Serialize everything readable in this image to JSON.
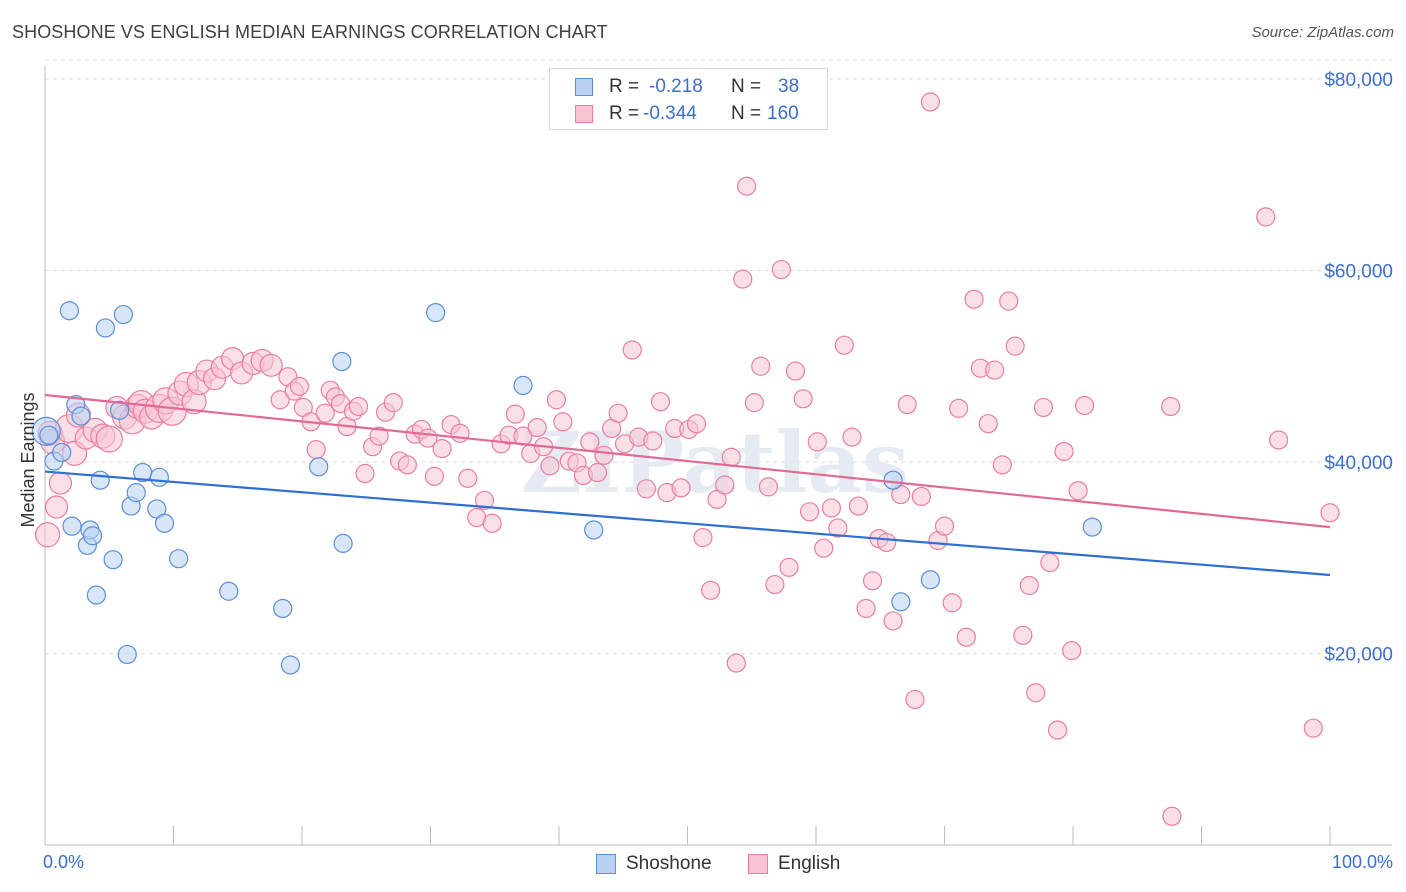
{
  "title": "SHOSHONE VS ENGLISH MEDIAN EARNINGS CORRELATION CHART",
  "source": "Source: ZipAtlas.com",
  "watermark": "ZIPatlas",
  "stats": [
    {
      "r_label": "R =",
      "r_value": "-0.218",
      "n_label": "N =",
      "n_value": "38"
    },
    {
      "r_label": "R =",
      "r_value": "-0.344",
      "n_label": "N =",
      "n_value": "160"
    }
  ],
  "x_min_label": "0.0%",
  "x_max_label": "100.0%",
  "colors": {
    "shoshone_fill": "#b8d1f3",
    "shoshone_stroke": "#5b8fd6",
    "shoshone_line": "#2f6fd1",
    "english_fill": "#f8c4d4",
    "english_stroke": "#e97fa0",
    "english_line": "#e06a93",
    "axis_text": "#3a6fd0",
    "grid": "#d9d9d9"
  },
  "chart_data": {
    "type": "scatter",
    "title": "SHOSHONE VS ENGLISH MEDIAN EARNINGS CORRELATION CHART",
    "xlabel": "",
    "ylabel": "Median Earnings",
    "xlim": [
      0,
      100
    ],
    "ylim": [
      0,
      82000
    ],
    "x_tick_labels": [
      "0.0%",
      "100.0%"
    ],
    "y_ticks": [
      20000,
      40000,
      60000,
      80000
    ],
    "y_tick_labels": [
      "$20,000",
      "$40,000",
      "$60,000",
      "$80,000"
    ],
    "grid": true,
    "legend_position": "bottom-center",
    "series": [
      {
        "name": "Shoshone",
        "trend": {
          "x": [
            0,
            100
          ],
          "y": [
            39000,
            28200
          ]
        },
        "points": [
          [
            0.1,
            43200,
            14
          ],
          [
            0.3,
            42800,
            9
          ],
          [
            0.7,
            40100,
            9
          ],
          [
            1.3,
            41000,
            9
          ],
          [
            1.9,
            55800,
            9
          ],
          [
            2.1,
            33300,
            9
          ],
          [
            2.4,
            46000,
            9
          ],
          [
            2.8,
            44800,
            9
          ],
          [
            3.3,
            31300,
            9
          ],
          [
            3.5,
            32900,
            9
          ],
          [
            3.7,
            32300,
            9
          ],
          [
            4.0,
            26100,
            9
          ],
          [
            4.3,
            38100,
            9
          ],
          [
            4.7,
            54000,
            9
          ],
          [
            5.3,
            29800,
            9
          ],
          [
            5.8,
            45400,
            9
          ],
          [
            6.1,
            55400,
            9
          ],
          [
            6.4,
            19900,
            9
          ],
          [
            6.7,
            35400,
            9
          ],
          [
            7.1,
            36800,
            9
          ],
          [
            7.6,
            38900,
            9
          ],
          [
            8.7,
            35100,
            9
          ],
          [
            8.9,
            38400,
            9
          ],
          [
            9.3,
            33600,
            9
          ],
          [
            10.4,
            29900,
            9
          ],
          [
            14.3,
            26500,
            9
          ],
          [
            18.5,
            24700,
            9
          ],
          [
            19.1,
            18800,
            9
          ],
          [
            21.3,
            39500,
            9
          ],
          [
            23.1,
            50500,
            9
          ],
          [
            23.2,
            31500,
            9
          ],
          [
            30.4,
            55600,
            9
          ],
          [
            37.2,
            48000,
            9
          ],
          [
            42.7,
            32900,
            9
          ],
          [
            66.0,
            38100,
            9
          ],
          [
            66.6,
            25400,
            9
          ],
          [
            68.9,
            27700,
            9
          ],
          [
            81.5,
            33200,
            9
          ]
        ]
      },
      {
        "name": "English",
        "trend": {
          "x": [
            0,
            100
          ],
          "y": [
            47000,
            33200
          ]
        },
        "points": [
          [
            0.2,
            32400,
            12
          ],
          [
            0.4,
            43000,
            12
          ],
          [
            0.6,
            42100,
            12
          ],
          [
            0.9,
            35300,
            11
          ],
          [
            1.2,
            37800,
            11
          ],
          [
            1.9,
            43500,
            14
          ],
          [
            2.3,
            40900,
            12
          ],
          [
            2.6,
            44900,
            12
          ],
          [
            3.2,
            42500,
            11
          ],
          [
            3.9,
            43300,
            12
          ],
          [
            4.5,
            42700,
            12
          ],
          [
            5.0,
            42400,
            13
          ],
          [
            5.6,
            45700,
            11
          ],
          [
            6.2,
            44700,
            12
          ],
          [
            6.8,
            44300,
            13
          ],
          [
            7.2,
            45800,
            12
          ],
          [
            7.5,
            46100,
            13
          ],
          [
            7.8,
            45300,
            12
          ],
          [
            8.3,
            44700,
            12
          ],
          [
            8.9,
            45600,
            14
          ],
          [
            9.4,
            46400,
            13
          ],
          [
            9.9,
            45300,
            14
          ],
          [
            10.5,
            47200,
            12
          ],
          [
            11.0,
            48100,
            12
          ],
          [
            11.6,
            46300,
            12
          ],
          [
            12.0,
            48300,
            12
          ],
          [
            12.6,
            49500,
            11
          ],
          [
            13.2,
            48700,
            11
          ],
          [
            13.8,
            49900,
            11
          ],
          [
            14.6,
            50800,
            11
          ],
          [
            15.3,
            49300,
            11
          ],
          [
            16.2,
            50300,
            11
          ],
          [
            16.9,
            50600,
            11
          ],
          [
            17.6,
            50100,
            11
          ],
          [
            18.3,
            46500,
            9
          ],
          [
            18.9,
            48900,
            9
          ],
          [
            19.4,
            47400,
            9
          ],
          [
            19.8,
            47900,
            9
          ],
          [
            20.1,
            45700,
            9
          ],
          [
            20.7,
            44200,
            9
          ],
          [
            21.1,
            41300,
            9
          ],
          [
            21.8,
            45100,
            9
          ],
          [
            22.2,
            47500,
            9
          ],
          [
            22.6,
            46800,
            9
          ],
          [
            23.0,
            46100,
            9
          ],
          [
            23.5,
            43700,
            9
          ],
          [
            24.0,
            45300,
            9
          ],
          [
            24.4,
            45800,
            9
          ],
          [
            24.9,
            38800,
            9
          ],
          [
            25.5,
            41600,
            9
          ],
          [
            26.0,
            42700,
            9
          ],
          [
            26.5,
            45200,
            9
          ],
          [
            27.1,
            46200,
            9
          ],
          [
            27.6,
            40100,
            9
          ],
          [
            28.2,
            39700,
            9
          ],
          [
            28.8,
            42900,
            9
          ],
          [
            29.3,
            43400,
            9
          ],
          [
            29.8,
            42500,
            9
          ],
          [
            30.3,
            38500,
            9
          ],
          [
            30.9,
            41400,
            9
          ],
          [
            31.6,
            43900,
            9
          ],
          [
            32.3,
            43000,
            9
          ],
          [
            32.9,
            38300,
            9
          ],
          [
            33.6,
            34200,
            9
          ],
          [
            34.2,
            36000,
            9
          ],
          [
            34.8,
            33600,
            9
          ],
          [
            35.5,
            41900,
            9
          ],
          [
            36.1,
            42800,
            9
          ],
          [
            36.6,
            45000,
            9
          ],
          [
            37.2,
            42700,
            9
          ],
          [
            37.8,
            40900,
            9
          ],
          [
            38.3,
            43600,
            9
          ],
          [
            38.8,
            41600,
            9
          ],
          [
            39.3,
            39600,
            9
          ],
          [
            39.8,
            46500,
            9
          ],
          [
            40.3,
            44200,
            9
          ],
          [
            40.8,
            40100,
            9
          ],
          [
            41.4,
            39900,
            9
          ],
          [
            41.9,
            38600,
            9
          ],
          [
            42.4,
            42100,
            9
          ],
          [
            43.0,
            38900,
            9
          ],
          [
            43.5,
            40700,
            9
          ],
          [
            44.1,
            43500,
            9
          ],
          [
            44.6,
            45100,
            9
          ],
          [
            45.1,
            41900,
            9
          ],
          [
            45.7,
            51700,
            9
          ],
          [
            46.2,
            42600,
            9
          ],
          [
            46.8,
            37200,
            9
          ],
          [
            47.3,
            42200,
            9
          ],
          [
            47.9,
            46300,
            9
          ],
          [
            48.4,
            36800,
            9
          ],
          [
            49.0,
            43500,
            9
          ],
          [
            49.5,
            37300,
            9
          ],
          [
            50.1,
            43400,
            9
          ],
          [
            50.7,
            44000,
            9
          ],
          [
            51.2,
            32100,
            9
          ],
          [
            51.8,
            26600,
            9
          ],
          [
            52.3,
            36100,
            9
          ],
          [
            52.9,
            37600,
            9
          ],
          [
            53.4,
            40500,
            9
          ],
          [
            53.8,
            19000,
            9
          ],
          [
            54.3,
            59100,
            9
          ],
          [
            54.6,
            68800,
            9
          ],
          [
            55.2,
            46200,
            9
          ],
          [
            55.7,
            50000,
            9
          ],
          [
            56.3,
            37400,
            9
          ],
          [
            56.8,
            27200,
            9
          ],
          [
            57.3,
            60100,
            9
          ],
          [
            57.9,
            29000,
            9
          ],
          [
            58.4,
            49500,
            9
          ],
          [
            59.0,
            46600,
            9
          ],
          [
            59.5,
            34800,
            9
          ],
          [
            60.1,
            42100,
            9
          ],
          [
            60.6,
            31000,
            9
          ],
          [
            61.2,
            35200,
            9
          ],
          [
            61.7,
            33100,
            9
          ],
          [
            62.2,
            52200,
            9
          ],
          [
            62.8,
            42600,
            9
          ],
          [
            63.3,
            35400,
            9
          ],
          [
            63.9,
            24700,
            9
          ],
          [
            64.4,
            27600,
            9
          ],
          [
            64.9,
            32000,
            9
          ],
          [
            65.5,
            31600,
            9
          ],
          [
            66.0,
            23400,
            9
          ],
          [
            66.6,
            36600,
            9
          ],
          [
            67.1,
            46000,
            9
          ],
          [
            67.7,
            15200,
            9
          ],
          [
            68.2,
            36400,
            9
          ],
          [
            68.9,
            77600,
            9
          ],
          [
            69.5,
            31800,
            9
          ],
          [
            70.0,
            33300,
            9
          ],
          [
            70.6,
            25300,
            9
          ],
          [
            71.1,
            45600,
            9
          ],
          [
            71.7,
            21700,
            9
          ],
          [
            72.3,
            57000,
            9
          ],
          [
            72.8,
            49800,
            9
          ],
          [
            73.4,
            44000,
            9
          ],
          [
            73.9,
            49600,
            9
          ],
          [
            74.5,
            39700,
            9
          ],
          [
            75.0,
            56800,
            9
          ],
          [
            75.5,
            52100,
            9
          ],
          [
            76.1,
            21900,
            9
          ],
          [
            76.6,
            27100,
            9
          ],
          [
            77.1,
            15900,
            9
          ],
          [
            77.7,
            45700,
            9
          ],
          [
            78.2,
            29500,
            9
          ],
          [
            78.8,
            12000,
            9
          ],
          [
            79.3,
            41100,
            9
          ],
          [
            79.9,
            20300,
            9
          ],
          [
            80.4,
            37000,
            9
          ],
          [
            80.9,
            45900,
            9
          ],
          [
            87.6,
            45800,
            9
          ],
          [
            87.7,
            3000,
            9
          ],
          [
            95.0,
            65600,
            9
          ],
          [
            96.0,
            42300,
            9
          ],
          [
            98.7,
            12200,
            9
          ],
          [
            100.0,
            34700,
            9
          ]
        ]
      }
    ]
  }
}
